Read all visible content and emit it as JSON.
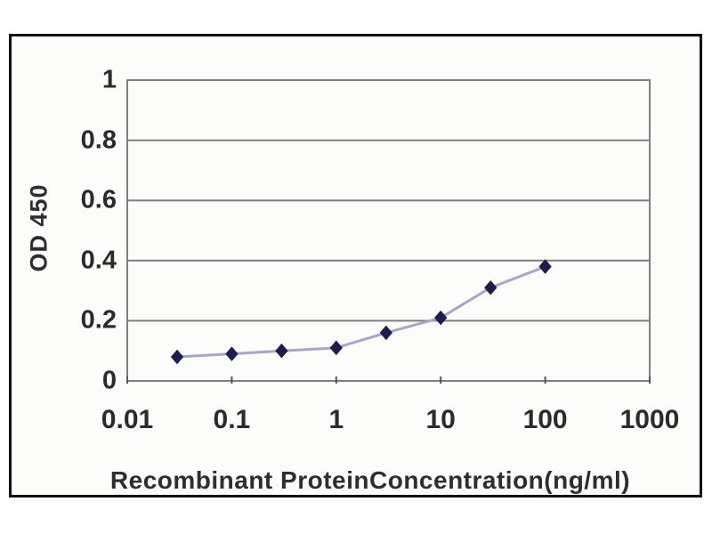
{
  "figure": {
    "background": "#ffffff",
    "frame_border_color": "#111111",
    "inner_background": "#fcfcfa"
  },
  "chart_data": {
    "type": "line",
    "title": "",
    "xlabel": "Recombinant ProteinConcentration(ng/ml)",
    "ylabel": "OD 450",
    "xscale": "log",
    "xlim": [
      0.01,
      1000
    ],
    "ylim": [
      0,
      1
    ],
    "x_ticks": [
      0.01,
      0.1,
      1,
      10,
      100,
      1000
    ],
    "x_tick_labels": [
      "0.01",
      "0.1",
      "1",
      "10",
      "100",
      "1000"
    ],
    "y_ticks": [
      0,
      0.2,
      0.4,
      0.6,
      0.8,
      1
    ],
    "y_tick_labels": [
      "0",
      "0.2",
      "0.4",
      "0.6",
      "0.8",
      "1"
    ],
    "grid": "horizontal",
    "legend": "none",
    "series": [
      {
        "name": "OD 450",
        "marker": "diamond",
        "x": [
          0.03,
          0.1,
          0.3,
          1,
          3,
          10,
          30,
          100
        ],
        "y": [
          0.08,
          0.09,
          0.1,
          0.11,
          0.16,
          0.21,
          0.31,
          0.38
        ]
      }
    ],
    "colors": {
      "line": "#a6a6c8",
      "marker": "#1e1e4a",
      "grid": "#7f7f7f",
      "text": "#2b2b2b"
    }
  }
}
